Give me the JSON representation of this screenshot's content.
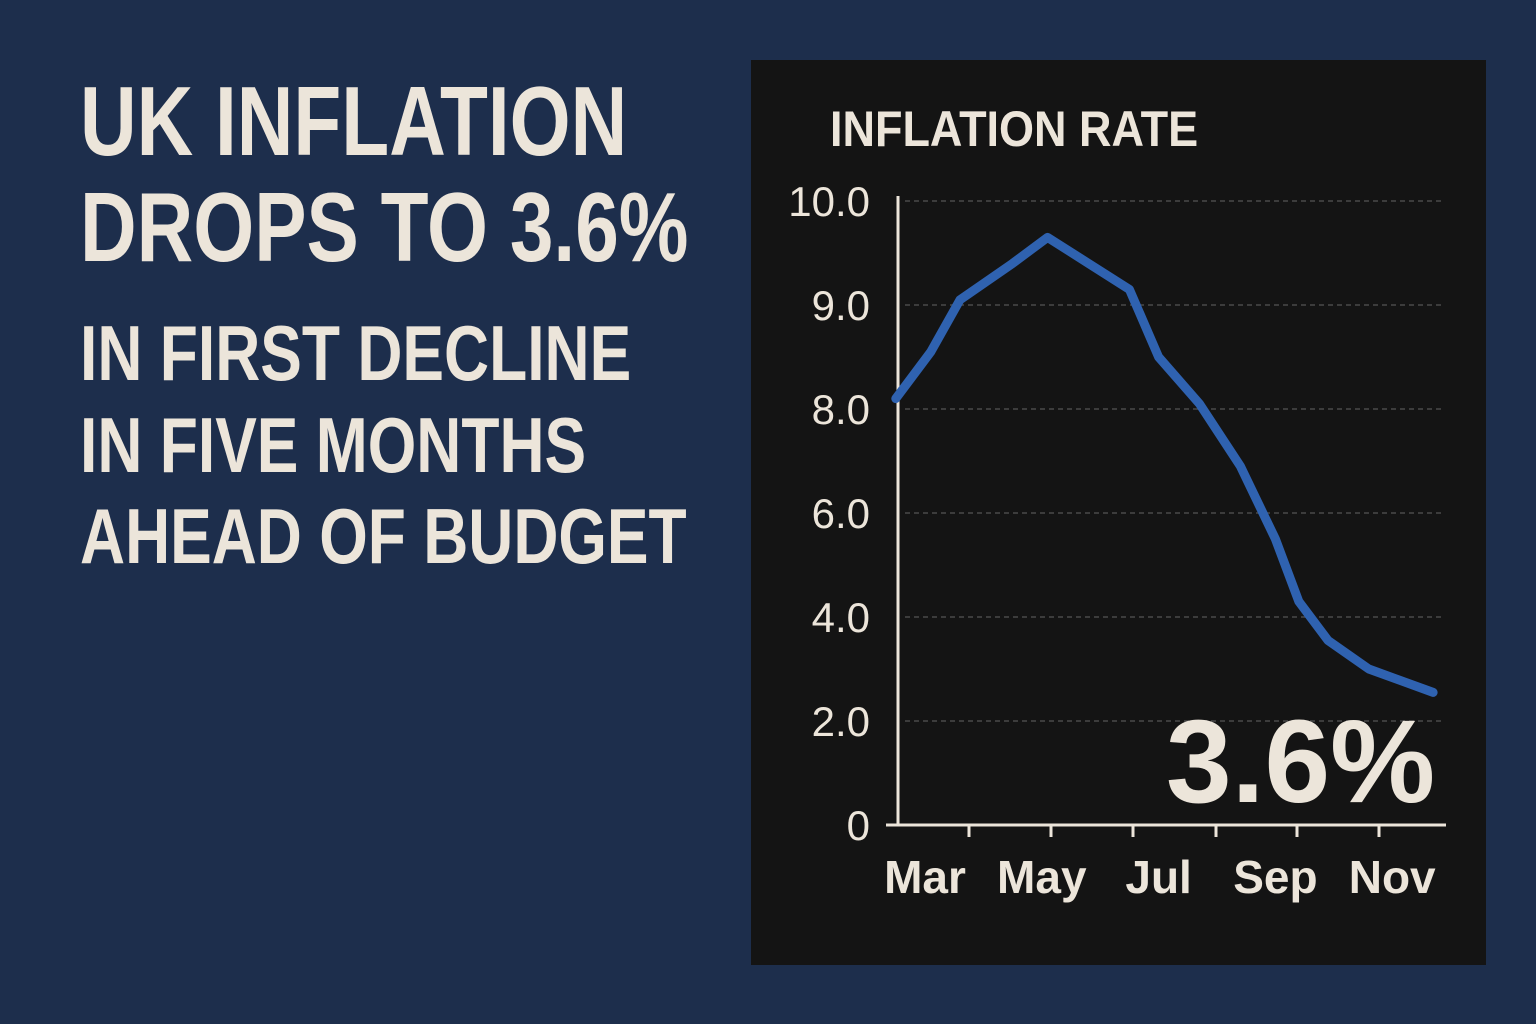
{
  "headline": {
    "line1": "UK INFLATION",
    "line2": "DROPS TO 3.6%",
    "sub1": "IN FIRST DECLINE",
    "sub2": "IN FIVE MONTHS",
    "sub3": "AHEAD OF BUDGET"
  },
  "colors": {
    "background": "#1d2e4c",
    "panel": "#141414",
    "text": "#ece5da",
    "line": "#2f62b0"
  },
  "chart_data": {
    "type": "line",
    "title": "INFLATION RATE",
    "xlabel": "",
    "ylabel": "",
    "x_tick_labels": [
      "Mar",
      "May",
      "Jul",
      "Sep",
      "Nov"
    ],
    "x_tick_values": [
      3,
      5,
      7,
      9,
      11
    ],
    "y_tick_labels": [
      "0",
      "2.0",
      "4.0",
      "6.0",
      "8.0",
      "9.0",
      "10.0"
    ],
    "grid": "horizontal dashed",
    "series": [
      {
        "x": [
          2.5,
          3.1,
          3.6,
          4.5,
          5.1,
          5.8,
          6.5,
          7.0,
          7.7,
          8.4,
          9.0,
          9.4,
          9.9,
          10.6,
          11.7
        ],
        "y": [
          8.1,
          8.55,
          9.05,
          9.4,
          9.65,
          9.4,
          9.15,
          8.5,
          8.05,
          6.9,
          5.5,
          4.3,
          3.55,
          3.0,
          2.55
        ]
      }
    ],
    "annotation": "3.6%"
  }
}
